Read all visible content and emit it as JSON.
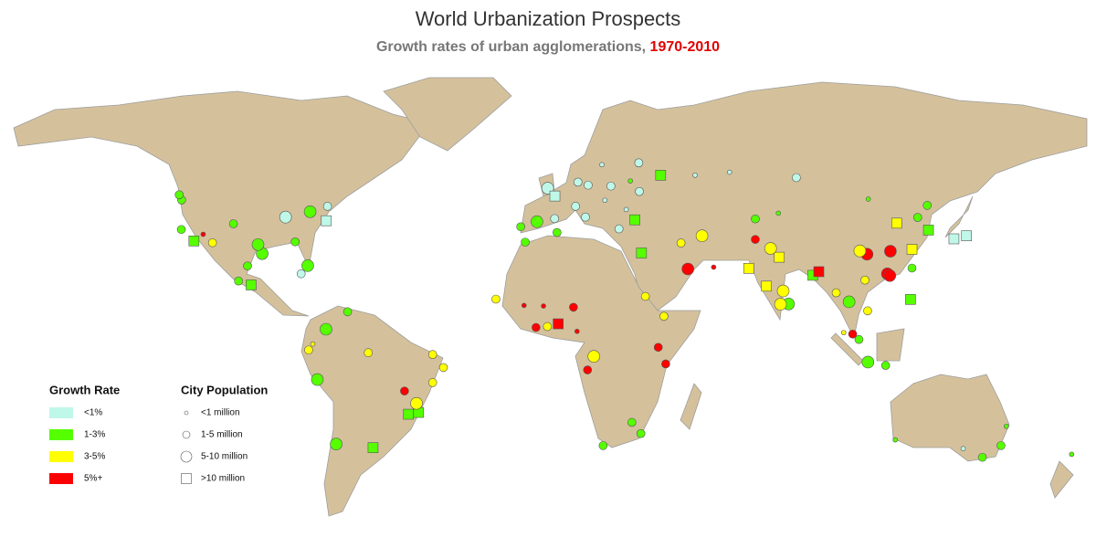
{
  "title": "World Urbanization Prospects",
  "subtitle": {
    "text": "Growth rates of urban agglomerations,",
    "period": "1970-2010"
  },
  "legend": {
    "growth_rate": {
      "title": "Growth Rate",
      "items": [
        {
          "label": "<1%",
          "color": "#bff7e8"
        },
        {
          "label": "1-3%",
          "color": "#55ff00"
        },
        {
          "label": "3-5%",
          "color": "#ffff00"
        },
        {
          "label": "5%+",
          "color": "#ff0000"
        }
      ]
    },
    "city_population": {
      "title": "City Population",
      "items": [
        {
          "label": "<1 million",
          "shape": "circle"
        },
        {
          "label": "1-5 million",
          "shape": "circle"
        },
        {
          "label": "5-10 million",
          "shape": "circle"
        },
        {
          "label": ">10 million",
          "shape": "square"
        }
      ]
    }
  },
  "cities": [
    [
      -0.1,
      51.5,
      0,
      2
    ],
    [
      2.3,
      48.9,
      0,
      3
    ],
    [
      -3.7,
      40.4,
      1,
      2
    ],
    [
      12.5,
      41.9,
      0,
      1
    ],
    [
      13.4,
      52.5,
      0,
      1
    ],
    [
      37.6,
      55.8,
      1,
      3
    ],
    [
      29,
      41,
      1,
      3
    ],
    [
      30.5,
      50.4,
      0,
      1
    ],
    [
      21,
      52.2,
      0,
      1
    ],
    [
      9.2,
      45.5,
      0,
      1
    ],
    [
      2.2,
      41.4,
      0,
      1
    ],
    [
      -9.1,
      38.7,
      1,
      1
    ],
    [
      23.7,
      38,
      0,
      1
    ],
    [
      10,
      53.5,
      0,
      1
    ],
    [
      18,
      59.3,
      0,
      0
    ],
    [
      30.3,
      59.9,
      0,
      1
    ],
    [
      19,
      47.5,
      0,
      0
    ],
    [
      26.1,
      44.4,
      0,
      0
    ],
    [
      27.5,
      53.9,
      1,
      0
    ],
    [
      82.9,
      55,
      0,
      1
    ],
    [
      60.6,
      56.8,
      0,
      0
    ],
    [
      49.1,
      55.8,
      0,
      0
    ],
    [
      -74,
      40.7,
      0,
      3
    ],
    [
      -118.2,
      34,
      1,
      3
    ],
    [
      -87.6,
      41.9,
      0,
      2
    ],
    [
      -79.4,
      43.7,
      1,
      2
    ],
    [
      -73.6,
      45.5,
      0,
      1
    ],
    [
      -99.1,
      19.4,
      1,
      3
    ],
    [
      -95.4,
      29.8,
      1,
      2
    ],
    [
      -96.8,
      32.8,
      1,
      2
    ],
    [
      -84.4,
      33.7,
      1,
      1
    ],
    [
      -80.2,
      25.8,
      1,
      2
    ],
    [
      -112,
      33.4,
      2,
      1
    ],
    [
      -115.1,
      36.2,
      3,
      0
    ],
    [
      -122.3,
      47.6,
      1,
      1
    ],
    [
      -122.4,
      37.8,
      1,
      1
    ],
    [
      -105,
      39.7,
      1,
      1
    ],
    [
      -103.3,
      20.7,
      1,
      1
    ],
    [
      -100.3,
      25.7,
      1,
      1
    ],
    [
      -82.4,
      23.1,
      0,
      1
    ],
    [
      -123.1,
      49.3,
      1,
      1
    ],
    [
      -46.6,
      -23.5,
      1,
      3
    ],
    [
      -43.2,
      -22.9,
      1,
      3
    ],
    [
      -58.4,
      -34.6,
      1,
      3
    ],
    [
      -77,
      -12,
      1,
      2
    ],
    [
      -74.1,
      4.7,
      1,
      2
    ],
    [
      -70.7,
      -33.4,
      1,
      2
    ],
    [
      -66.9,
      10.5,
      1,
      1
    ],
    [
      -43.9,
      -19.9,
      2,
      2
    ],
    [
      -47.9,
      -15.8,
      3,
      1
    ],
    [
      -34.9,
      -8,
      2,
      1
    ],
    [
      -38.5,
      -13,
      2,
      1
    ],
    [
      -38.5,
      -3.7,
      2,
      1
    ],
    [
      -60,
      -3.1,
      2,
      1
    ],
    [
      -78.5,
      -0.2,
      2,
      0
    ],
    [
      -79.9,
      -2.2,
      2,
      1
    ],
    [
      3.4,
      6.5,
      3,
      3
    ],
    [
      31.2,
      30,
      1,
      3
    ],
    [
      15.3,
      -4.3,
      2,
      2
    ],
    [
      28,
      -26.2,
      1,
      1
    ],
    [
      -4,
      5.3,
      3,
      1
    ],
    [
      -17.4,
      14.7,
      2,
      1
    ],
    [
      32.5,
      15.6,
      2,
      1
    ],
    [
      38.7,
      9,
      2,
      1
    ],
    [
      36.8,
      -1.3,
      3,
      1
    ],
    [
      13.2,
      -8.8,
      3,
      1
    ],
    [
      39.3,
      -6.8,
      3,
      1
    ],
    [
      -7.6,
      33.6,
      1,
      1
    ],
    [
      3,
      36.8,
      1,
      1
    ],
    [
      -0.2,
      5.6,
      2,
      1
    ],
    [
      8.5,
      12,
      3,
      1
    ],
    [
      18.4,
      -33.9,
      1,
      1
    ],
    [
      31,
      -29.9,
      1,
      1
    ],
    [
      9.7,
      4,
      3,
      0
    ],
    [
      -8,
      12.6,
      3,
      0
    ],
    [
      -1.5,
      12.4,
      3,
      0
    ],
    [
      51.4,
      35.7,
      2,
      2
    ],
    [
      46.7,
      24.7,
      3,
      2
    ],
    [
      44.4,
      33.3,
      2,
      1
    ],
    [
      67,
      24.9,
      2,
      3
    ],
    [
      77.2,
      28.6,
      2,
      3
    ],
    [
      72.9,
      19,
      2,
      3
    ],
    [
      88.4,
      22.6,
      1,
      3
    ],
    [
      90.4,
      23.8,
      3,
      3
    ],
    [
      80.3,
      13.1,
      1,
      2
    ],
    [
      77.6,
      13,
      2,
      2
    ],
    [
      78.5,
      17.4,
      2,
      2
    ],
    [
      74.3,
      31.5,
      2,
      2
    ],
    [
      69.2,
      34.5,
      3,
      1
    ],
    [
      55.3,
      25.3,
      3,
      0
    ],
    [
      139.7,
      35.7,
      0,
      3
    ],
    [
      135.5,
      34.7,
      0,
      3
    ],
    [
      127,
      37.6,
      1,
      3
    ],
    [
      116.4,
      39.9,
      2,
      3
    ],
    [
      121.5,
      31.2,
      2,
      3
    ],
    [
      113.3,
      23.1,
      3,
      2
    ],
    [
      114.1,
      22.5,
      3,
      2
    ],
    [
      106.5,
      29.6,
      3,
      2
    ],
    [
      114.3,
      30.6,
      3,
      2
    ],
    [
      104.1,
      30.7,
      2,
      2
    ],
    [
      121,
      14.6,
      1,
      3
    ],
    [
      106.8,
      -6.2,
      1,
      2
    ],
    [
      100.5,
      13.8,
      1,
      2
    ],
    [
      106.7,
      10.8,
      2,
      1
    ],
    [
      101.7,
      3.1,
      3,
      1
    ],
    [
      103.8,
      1.3,
      1,
      1
    ],
    [
      96.2,
      16.8,
      2,
      1
    ],
    [
      105.8,
      21,
      2,
      1
    ],
    [
      121.5,
      25,
      1,
      1
    ],
    [
      126.6,
      45.8,
      1,
      1
    ],
    [
      123.4,
      41.8,
      1,
      1
    ],
    [
      76.9,
      43.2,
      1,
      0
    ],
    [
      69.2,
      41.3,
      1,
      1
    ],
    [
      106.9,
      47.9,
      1,
      0
    ],
    [
      112.7,
      -7.3,
      1,
      1
    ],
    [
      98.7,
      3.6,
      2,
      0
    ],
    [
      151.2,
      -33.9,
      1,
      1
    ],
    [
      145,
      -37.8,
      1,
      1
    ],
    [
      153,
      -27.5,
      1,
      0
    ],
    [
      115.9,
      -32,
      1,
      0
    ],
    [
      138.6,
      -34.9,
      0,
      0
    ],
    [
      174.8,
      -36.8,
      1,
      0
    ]
  ]
}
